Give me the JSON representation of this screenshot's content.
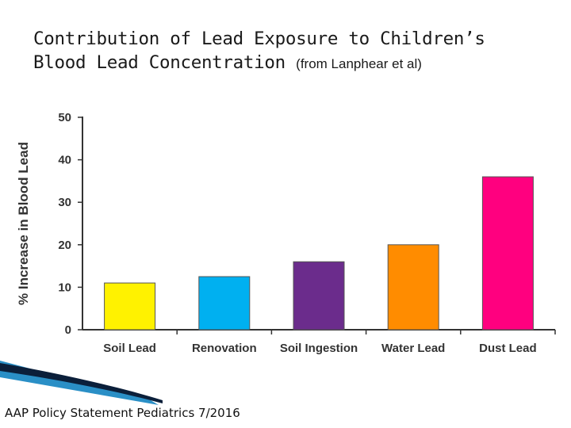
{
  "title": {
    "line1": "Contribution of Lead Exposure to Children’s",
    "line2": "Blood Lead Concentration",
    "note": "(from Lanphear et al)"
  },
  "footer": "AAP Policy Statement Pediatrics 7/2016",
  "colors": {
    "bars": [
      "#fff200",
      "#00b0f0",
      "#6b2c8c",
      "#ff8c00",
      "#ff007f"
    ],
    "axis": "#333333",
    "deco_dark": "#0b1f3a",
    "deco_blue": "#2a8fc6"
  },
  "chart_data": {
    "type": "bar",
    "title": "Contribution of Lead Exposure to Children’s Blood Lead Concentration",
    "xlabel": "",
    "ylabel": "% Increase in Blood Lead",
    "categories": [
      "Soil Lead",
      "Renovation",
      "Soil Ingestion",
      "Water Lead",
      "Dust Lead"
    ],
    "values": [
      11,
      12.5,
      16,
      20,
      36
    ],
    "ylim": [
      0,
      50
    ],
    "yticks": [
      0,
      10,
      20,
      30,
      40,
      50
    ],
    "grid": false,
    "legend": "none"
  }
}
